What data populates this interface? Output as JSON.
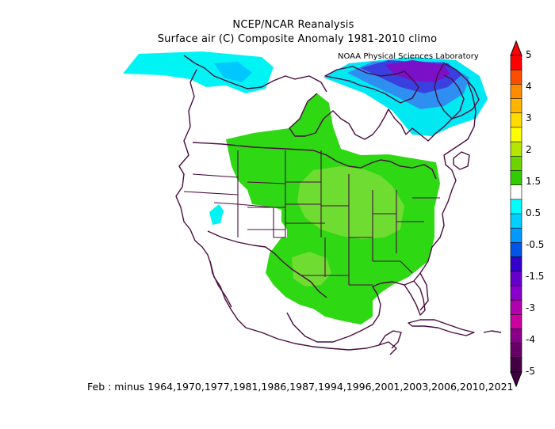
{
  "title": {
    "line1": "NCEP/NCAR Reanalysis",
    "line2": "Surface air (C) Composite Anomaly 1981-2010 climo"
  },
  "credit": "NOAA Physical Sciences Laboratory",
  "footnote": "Feb :  minus 1964,1970,1977,1981,1986,1987,1994,1996,2001,2003,2006,2010,2021",
  "colorbar": {
    "labels": [
      "5",
      "4",
      "3",
      "2",
      "1.5",
      "0.5",
      "-0.5",
      "-1.5",
      "-3",
      "-4",
      "-5"
    ],
    "colors": [
      "#ff0000",
      "#ff4d00",
      "#ff8c00",
      "#ffb400",
      "#ffdc00",
      "#ffff00",
      "#b4e600",
      "#6ed400",
      "#33cc00",
      "#ffffff",
      "#00ffff",
      "#00d0ff",
      "#0099ff",
      "#0055e6",
      "#3300cc",
      "#6600cc",
      "#8800cc",
      "#b000b0",
      "#cc00a0",
      "#880088",
      "#660066",
      "#440044"
    ]
  },
  "colors": {
    "warm_anomaly": "#2ed812",
    "warm_anomaly_strong": "#7fe23d",
    "cool_anomaly": "#00f0f0",
    "cool_anomaly_mid": "#00c8ff",
    "cold_anomaly": "#3050f0",
    "very_cold_anomaly": "#7a10c0",
    "coastline": "#4a0c40"
  }
}
